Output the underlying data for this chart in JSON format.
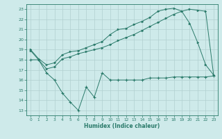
{
  "line1_x": [
    0,
    1,
    2,
    3,
    4,
    5,
    6,
    7,
    8,
    9,
    10,
    11,
    12,
    13,
    14,
    15,
    16,
    17,
    18,
    19,
    20,
    21,
    22,
    23
  ],
  "line1_y": [
    19.0,
    18.1,
    17.5,
    17.7,
    18.5,
    18.8,
    18.9,
    19.2,
    19.5,
    19.8,
    20.5,
    21.0,
    21.1,
    21.5,
    21.8,
    22.2,
    22.8,
    23.0,
    23.1,
    22.8,
    21.6,
    19.7,
    17.5,
    16.5
  ],
  "line2_x": [
    0,
    1,
    2,
    3,
    4,
    5,
    6,
    7,
    8,
    9,
    10,
    11,
    12,
    13,
    14,
    15,
    16,
    17,
    18,
    19,
    20,
    21,
    22,
    23
  ],
  "line2_y": [
    18.9,
    18.0,
    17.1,
    17.3,
    18.1,
    18.3,
    18.6,
    18.8,
    19.0,
    19.2,
    19.5,
    19.9,
    20.2,
    20.5,
    20.9,
    21.3,
    21.7,
    22.1,
    22.5,
    22.8,
    23.0,
    22.9,
    22.8,
    16.5
  ],
  "line3_x": [
    0,
    1,
    2,
    3,
    4,
    5,
    6,
    7,
    8,
    9,
    10,
    11,
    12,
    13,
    14,
    15,
    16,
    17,
    18,
    19,
    20,
    21,
    22,
    23
  ],
  "line3_y": [
    18.0,
    18.0,
    16.7,
    16.0,
    14.7,
    13.8,
    13.0,
    15.3,
    14.3,
    16.7,
    16.0,
    16.0,
    16.0,
    16.0,
    16.0,
    16.2,
    16.2,
    16.2,
    16.3,
    16.3,
    16.3,
    16.3,
    16.3,
    16.4
  ],
  "color": "#2a7a6a",
  "bg_color": "#ceeaea",
  "grid_color": "#b0d0d0",
  "xlabel": "Humidex (Indice chaleur)",
  "xlim": [
    -0.5,
    23.5
  ],
  "ylim": [
    12.5,
    23.5
  ],
  "yticks": [
    13,
    14,
    15,
    16,
    17,
    18,
    19,
    20,
    21,
    22,
    23
  ],
  "xticks": [
    0,
    1,
    2,
    3,
    4,
    5,
    6,
    7,
    8,
    9,
    10,
    11,
    12,
    13,
    14,
    15,
    16,
    17,
    18,
    19,
    20,
    21,
    22,
    23
  ]
}
